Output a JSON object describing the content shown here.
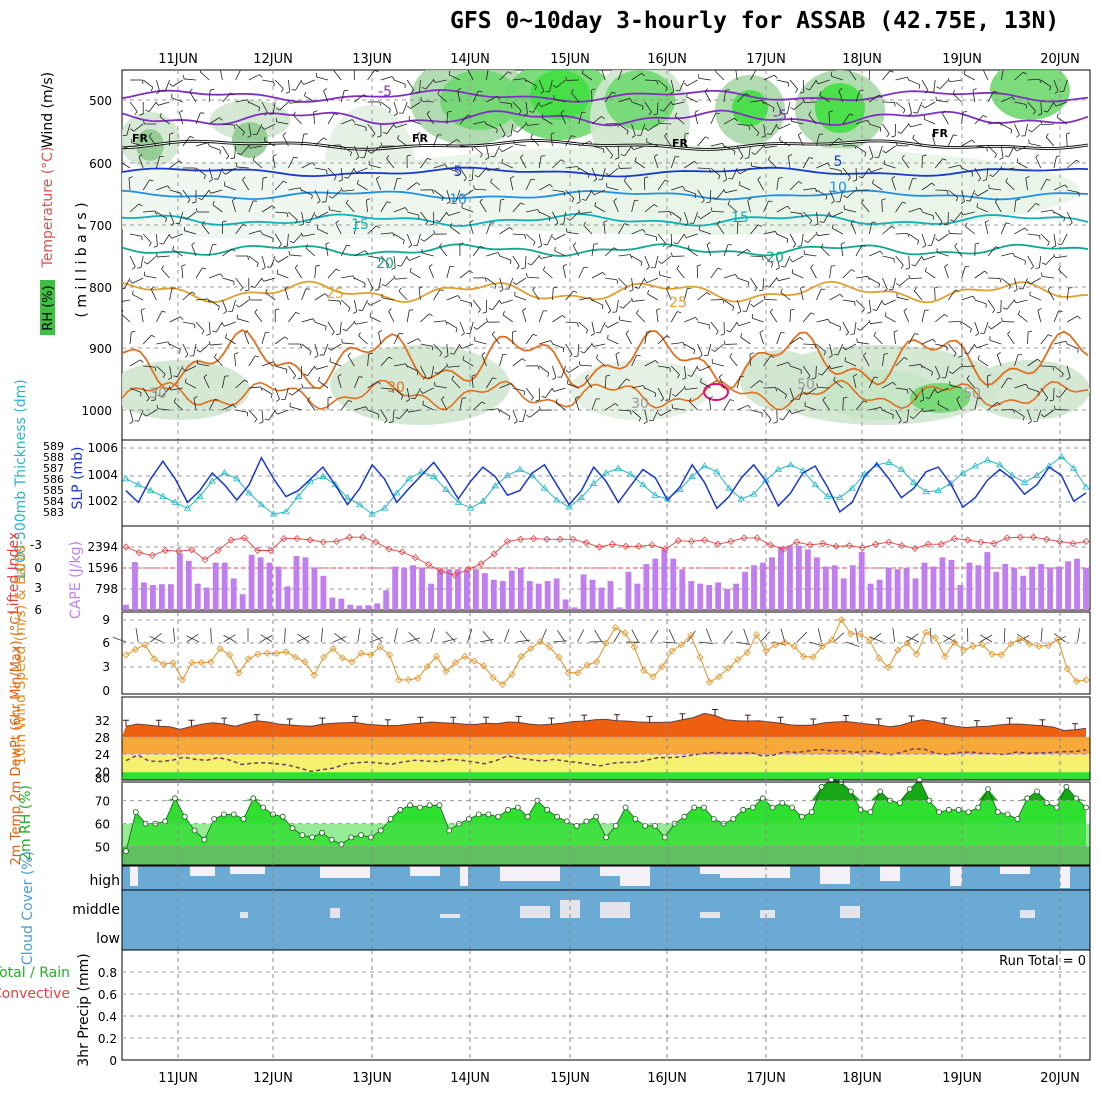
{
  "title": "GFS 0~10day 3-hourly for ASSAB (42.75E, 13N)",
  "chart_data": {
    "type": "meteogram",
    "dates": [
      "11JUN",
      "12JUN",
      "13JUN",
      "14JUN",
      "15JUN",
      "16JUN",
      "17JUN",
      "18JUN",
      "19JUN",
      "20JUN"
    ],
    "colors": {
      "temp_fill": "#ee6010",
      "dewpt_fill": "#f4f070",
      "rh_fill": "#22d022",
      "cloud": "#6aaad4",
      "cape_bar": "#c07ef0",
      "lifted": "#e84040",
      "slp": "#1838d0",
      "thick": "#20b8c8",
      "wind": "#e89020"
    },
    "upper": {
      "ylabel_wind": "Wind (m/s)",
      "ylabel_temp": "Temperature (°C)",
      "ylabel_rh": "RH (%)",
      "ylabel_p": "( m i l l i b a r s )",
      "pressure_ticks": [
        "500",
        "600",
        "700",
        "800",
        "900",
        "1000"
      ],
      "isotherm_labels": [
        "-5",
        "-5",
        "FR",
        "FR",
        "FR",
        "FR",
        "5",
        "5",
        "10",
        "10",
        "15",
        "15",
        "20",
        "20",
        "25",
        "25",
        "30",
        "30",
        "50",
        "50",
        "30"
      ]
    },
    "slp_panel": {
      "label_thick": "1000-500mb Thickness (dm)",
      "label_slp": "SLP (mb)",
      "thick_ticks": [
        "589",
        "588",
        "587",
        "586",
        "585",
        "584",
        "583"
      ],
      "slp_ticks": [
        "1006",
        "1004",
        "1002"
      ],
      "slp_range": [
        1000.5,
        1006.8
      ],
      "slp": [
        1003,
        1002,
        1004,
        1005.5,
        1004,
        1002,
        1003,
        1004.5,
        1003.5,
        1002.2,
        1003.5,
        1005.8,
        1004,
        1002.5,
        1003,
        1004,
        1005,
        1003.5,
        1001.8,
        1003.2,
        1005.2,
        1004,
        1002,
        1003.2,
        1004.3,
        1005.4,
        1004,
        1002.3,
        1003.8,
        1005,
        1004.2,
        1002.6,
        1003,
        1004.5,
        1005.2,
        1003.5,
        1001.8,
        1003,
        1005,
        1003.8,
        1002,
        1003.4,
        1004.8,
        1004.1,
        1002.2,
        1003.3,
        1005.2,
        1003.7,
        1001.5,
        1002.5,
        1004.1,
        1005.2,
        1003.8,
        1001.7,
        1002.8,
        1004.5,
        1005.1,
        1003.3,
        1001.2,
        1002,
        1004.2,
        1005.3,
        1004,
        1002.4,
        1003.2,
        1004.6,
        1005,
        1003.6,
        1001.6,
        1002.4,
        1003.9,
        1004.8,
        1004,
        1002.7,
        1003.5,
        1005,
        1004.3,
        1002.1,
        1002.8
      ],
      "thick": [
        1004,
        1003.5,
        1003,
        1002.5,
        1002,
        1001.5,
        1002.5,
        1003.8,
        1004.5,
        1004,
        1002.8,
        1001.8,
        1001,
        1001.2,
        1002.5,
        1003.8,
        1004.2,
        1003.5,
        1002.4,
        1001.8,
        1001,
        1001.5,
        1002.8,
        1004,
        1004.6,
        1004.2,
        1003.1,
        1002,
        1001.5,
        1002.1,
        1003.4,
        1004.3,
        1004.8,
        1004.3,
        1003.2,
        1002.2,
        1001.6,
        1002.4,
        1003.6,
        1004.5,
        1004.9,
        1004.4,
        1003.5,
        1002.6,
        1002.3,
        1003.1,
        1004.2,
        1005.1,
        1004.6,
        1003.2,
        1002.3,
        1002.7,
        1003.9,
        1004.8,
        1005.2,
        1004.7,
        1003.5,
        1002.5,
        1002.4,
        1003.2,
        1004.4,
        1005.2,
        1005.4,
        1004.8,
        1003.7,
        1002.9,
        1003,
        1003.6,
        1004.5,
        1005.1,
        1005.6,
        1005.2,
        1004.3,
        1003.7,
        1004.3,
        1005.1,
        1005.9,
        1004.9,
        1003.3
      ]
    },
    "cape_panel": {
      "label_li": "Lifted Index",
      "label_cape": "CAPE (J/kg)",
      "li_ticks": [
        "-3",
        "0",
        "3",
        "6"
      ],
      "cape_ticks": [
        "2394",
        "1596",
        "798"
      ],
      "cape": [
        200,
        1820,
        1050,
        950,
        980,
        980,
        2150,
        1870,
        1000,
        850,
        1800,
        1800,
        1200,
        600,
        2100,
        2000,
        1800,
        1650,
        900,
        2050,
        2000,
        1600,
        1300,
        470,
        430,
        200,
        170,
        180,
        250,
        750,
        1650,
        1600,
        1700,
        1600,
        1000,
        1550,
        1550,
        1550,
        1500,
        1550,
        1400,
        1150,
        1100,
        1500,
        1600,
        1100,
        1000,
        1100,
        1200,
        400,
        100,
        1350,
        1150,
        850,
        1100,
        100,
        1450,
        1000,
        1750,
        1950,
        2300,
        1950,
        1550,
        1100,
        1000,
        950,
        1050,
        800,
        1000,
        1450,
        1700,
        1800,
        2000,
        2400,
        2450,
        2450,
        2300,
        2000,
        1650,
        1700,
        1200,
        1700,
        2200,
        1000,
        1150,
        1600,
        1550,
        1600,
        1200,
        1800,
        1650,
        2000,
        1900,
        950,
        1800,
        1700,
        2200,
        1450,
        1750,
        1600,
        1300,
        1650,
        1750,
        1600,
        1650,
        1850,
        1950,
        1600
      ],
      "lifted": [
        -3,
        -2.2,
        -1.8,
        -2.5,
        -2.4,
        -2.6,
        -1.2,
        -2.5,
        -4,
        -4.3,
        -2.5,
        -2.5,
        -4.2,
        -4.2,
        -4,
        -3.7,
        -3.8,
        -4.4,
        -4.4,
        -3.7,
        -2.7,
        -2.3,
        -1.5,
        -0.5,
        0.5,
        1,
        0.2,
        -0.6,
        -2,
        -3.8,
        -4.1,
        -4.2,
        -4.1,
        -4.1,
        -4.1,
        -3.6,
        -3,
        -3.4,
        -3.1,
        -3.1,
        -3.3,
        -2.7,
        -3.9,
        -3.8,
        -4,
        -3.4,
        -3.8,
        -4.3,
        -4.3,
        -3.3,
        -2.7,
        -3.7,
        -3.3,
        -3.5,
        -3.1,
        -3.2,
        -2.9,
        -3.4,
        -3.7,
        -3.2,
        -2.8,
        -3.4,
        -3.4,
        -4.2,
        -4,
        -3.7,
        -3.5,
        -4.3,
        -4.4,
        -4.4,
        -4.1,
        -3.8,
        -3.5,
        -3.8
      ]
    },
    "wind_panel": {
      "label": "10m Wind Speed (m/s) & Barbs",
      "ticks": [
        "9",
        "6",
        "3",
        "0"
      ],
      "speed": [
        4.5,
        5.2,
        5.8,
        4,
        3.3,
        3.5,
        1.3,
        3.5,
        3.5,
        3.6,
        5.3,
        4.5,
        2.2,
        4,
        4.6,
        4.7,
        4.7,
        4.9,
        4.2,
        3.6,
        1.9,
        4.2,
        5.3,
        4.1,
        3.6,
        4.7,
        4.5,
        5.5,
        4.5,
        1.3,
        1.3,
        1.5,
        3,
        4.3,
        2.4,
        3.5,
        4.3,
        3.7,
        3.1,
        1.6,
        0.7,
        2,
        4.3,
        5.3,
        6.2,
        5.5,
        4.2,
        2.2,
        2.2,
        3.2,
        3.6,
        6,
        8,
        7.3,
        5.5,
        2.5,
        1.7,
        3,
        5,
        5.8,
        7,
        4.2,
        1,
        1.7,
        2.8,
        3.9,
        4.8,
        7.1,
        5,
        5.8,
        6.1,
        5.6,
        4.3,
        4.2,
        5.6,
        6.4,
        9,
        7.2,
        7.2,
        6.4,
        4.1,
        2.9,
        5.1,
        6,
        4.6,
        7.4,
        6.7,
        4.3,
        6.1,
        5.1,
        5.6,
        5.8,
        4.6,
        4.5,
        5.9,
        6.6,
        5.9,
        5.6,
        5.7,
        6.5,
        2.7,
        1.1,
        1.3
      ]
    },
    "temp_panel": {
      "label": "2m Temp 2m DewPt (6hr Min/Max) (°C)",
      "ticks": [
        "32",
        "28",
        "24",
        "20"
      ],
      "temp": [
        30.5,
        31,
        30.8,
        30.5,
        30.4,
        29.8,
        30.5,
        31,
        31.3,
        31,
        30.5,
        31.2,
        31.8,
        31.5,
        31,
        30.8,
        30.6,
        30.5,
        31,
        31.2,
        31.3,
        31.4,
        31,
        30.8,
        30.6,
        30.7,
        31,
        31.2,
        31.5,
        31.3,
        31.2,
        31,
        30.9,
        31.2,
        31.1,
        31.5,
        31.4,
        31,
        30.8,
        31,
        31.2,
        31.6,
        31.7,
        32,
        32.1,
        31.8,
        31.7,
        31.5,
        31.4,
        31.4,
        31.5,
        32,
        32.5,
        33.5,
        33,
        32,
        31.8,
        31.7,
        31.8,
        31.5,
        31.2,
        30.8,
        30.7,
        30.8,
        31.3,
        31.5,
        31.6,
        31.3,
        31,
        30.8,
        30.4,
        30.7,
        31.5,
        32,
        31.6,
        31,
        30.5,
        30.2,
        30.4,
        30.5,
        30.8,
        31,
        31,
        30.8,
        30.6,
        30.3,
        29.5,
        29.7,
        30
      ],
      "dew": [
        22.5,
        23.8,
        22.4,
        22.3,
        22.6,
        23.3,
        22.8,
        22.6,
        23.2,
        22.6,
        21.6,
        21.9,
        22,
        21.8,
        21.5,
        20.8,
        20,
        20.4,
        20.8,
        21.8,
        22,
        22.2,
        21.9,
        21.7,
        22.2,
        22.6,
        22.4,
        22.3,
        22.8,
        22.6,
        22.2,
        21.8,
        22.5,
        23.6,
        23.1,
        22.7,
        22.4,
        22.8,
        22.4,
        22.1,
        21.7,
        21.3,
        21.9,
        22.1,
        22.1,
        22.6,
        23.2,
        23.2,
        23.4,
        23.8,
        24.2,
        24.4,
        24.2,
        24.2,
        24.4,
        23.6,
        23.8,
        24.6,
        24.4,
        24.8,
        25.1,
        24.8,
        24.8,
        24.4,
        24.8,
        24.4,
        23.8,
        24.4,
        25.2,
        25.2,
        24.2,
        23.9,
        24.4,
        24.5,
        24.2,
        24.1,
        23.9,
        24.5,
        24.2,
        24.3,
        24.4,
        24.6,
        24.6,
        25
      ]
    },
    "rh_panel": {
      "label": "2m RH (%)",
      "ticks": [
        "80",
        "70",
        "60",
        "50"
      ],
      "rh": [
        48,
        65,
        60,
        60,
        61,
        71,
        63,
        57,
        53,
        62,
        64,
        64,
        62,
        71,
        67,
        64,
        63,
        58,
        55,
        54,
        56,
        53,
        51,
        54,
        55,
        54,
        57,
        62,
        66,
        68,
        67,
        68,
        68,
        57,
        60,
        62,
        64,
        64,
        63,
        66,
        67,
        63,
        70,
        66,
        63,
        61,
        59,
        61,
        63,
        54,
        59,
        67,
        62,
        59,
        59,
        54,
        60,
        63,
        67,
        67,
        62,
        60,
        62,
        66,
        67,
        71,
        67,
        69,
        67,
        63,
        65,
        76,
        79,
        78,
        74,
        66,
        65,
        74,
        70,
        69,
        75,
        79,
        70,
        65,
        66,
        66,
        65,
        67,
        75,
        65,
        64,
        62,
        71,
        74,
        69,
        67,
        76,
        71,
        67
      ]
    },
    "cloud_panel": {
      "label": "Cloud Cover (%)",
      "rows": [
        "high",
        "middle",
        "low"
      ]
    },
    "precip_panel": {
      "label_total": "Total / Rain",
      "label_conv": "Convective",
      "label_axis": "3hr Precip (mm)",
      "ticks": [
        "0.8",
        "0.6",
        "0.4",
        "0.2",
        "0"
      ],
      "run_total": "Run Total = 0"
    }
  }
}
